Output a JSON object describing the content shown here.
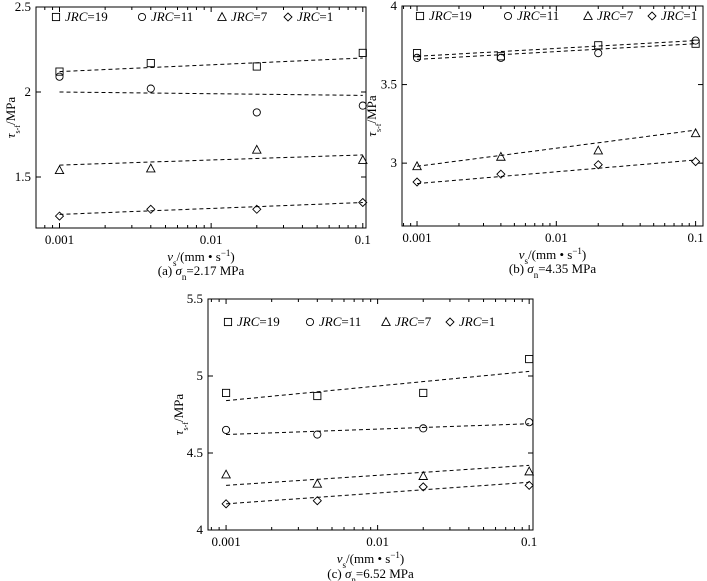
{
  "chart_data": [
    {
      "type": "scatter",
      "x_scale": "log",
      "xlim": [
        0.0007,
        0.105
      ],
      "ylim": [
        1.2,
        2.5
      ],
      "x_ticks": [
        0.001,
        0.01,
        0.1
      ],
      "x_tick_labels": [
        "0.001",
        "0.01",
        "0.1"
      ],
      "y_ticks": [
        1.5,
        2.0,
        2.5
      ],
      "y_tick_labels": [
        "1.5",
        "2",
        "2.5"
      ],
      "xlabel": "v_s/(mm • s^-1)",
      "ylabel": "τ_s-f/MPa",
      "caption": "(a) σn=2.17 MPa",
      "legend": "top",
      "series": [
        {
          "name": "JRC=19",
          "marker": "square",
          "x": [
            0.001,
            0.004,
            0.02,
            0.1
          ],
          "y": [
            2.12,
            2.17,
            2.15,
            2.23
          ],
          "fit": [
            2.12,
            2.2
          ]
        },
        {
          "name": "JRC=11",
          "marker": "circle",
          "x": [
            0.001,
            0.004,
            0.02,
            0.1
          ],
          "y": [
            2.09,
            2.02,
            1.88,
            1.92
          ],
          "fit": [
            2.0,
            1.98
          ]
        },
        {
          "name": "JRC=7",
          "marker": "triangle",
          "x": [
            0.001,
            0.004,
            0.02,
            0.1
          ],
          "y": [
            1.54,
            1.55,
            1.66,
            1.6
          ],
          "fit": [
            1.57,
            1.63
          ]
        },
        {
          "name": "JRC=1",
          "marker": "diamond",
          "x": [
            0.001,
            0.004,
            0.02,
            0.1
          ],
          "y": [
            1.27,
            1.31,
            1.31,
            1.35
          ],
          "fit": [
            1.28,
            1.35
          ]
        }
      ]
    },
    {
      "type": "scatter",
      "x_scale": "log",
      "xlim": [
        0.00078,
        0.113
      ],
      "ylim": [
        2.6,
        4.0
      ],
      "x_ticks": [
        0.001,
        0.01,
        0.1
      ],
      "x_tick_labels": [
        "0.001",
        "0.01",
        "0.1"
      ],
      "y_ticks": [
        3.0,
        3.5,
        4.0
      ],
      "y_tick_labels": [
        "3",
        "3.5",
        "4"
      ],
      "xlabel": "v_s/(mm • s^-1)",
      "ylabel": "τ_s-f/MPa",
      "caption": "(b) σn=4.35 MPa",
      "legend": "top",
      "series": [
        {
          "name": "JRC=19",
          "marker": "square",
          "x": [
            0.001,
            0.004,
            0.02,
            0.1
          ],
          "y": [
            3.7,
            3.68,
            3.75,
            3.76
          ],
          "fit": [
            3.68,
            3.78
          ]
        },
        {
          "name": "JRC=11",
          "marker": "circle",
          "x": [
            0.001,
            0.004,
            0.02,
            0.1
          ],
          "y": [
            3.67,
            3.67,
            3.7,
            3.78
          ],
          "fit": [
            3.66,
            3.76
          ]
        },
        {
          "name": "JRC=7",
          "marker": "triangle",
          "x": [
            0.001,
            0.004,
            0.02,
            0.1
          ],
          "y": [
            2.98,
            3.04,
            3.08,
            3.19
          ],
          "fit": [
            2.98,
            3.21
          ]
        },
        {
          "name": "JRC=1",
          "marker": "diamond",
          "x": [
            0.001,
            0.004,
            0.02,
            0.1
          ],
          "y": [
            2.88,
            2.93,
            2.99,
            3.01
          ],
          "fit": [
            2.87,
            3.02
          ]
        }
      ]
    },
    {
      "type": "scatter",
      "x_scale": "log",
      "xlim": [
        0.00076,
        0.106
      ],
      "ylim": [
        4.0,
        5.5
      ],
      "x_ticks": [
        0.001,
        0.01,
        0.1
      ],
      "x_tick_labels": [
        "0.001",
        "0.01",
        "0.1"
      ],
      "y_ticks": [
        4.0,
        4.5,
        5.0,
        5.5
      ],
      "y_tick_labels": [
        "4",
        "4.5",
        "5",
        "5.5"
      ],
      "xlabel": "v_s/(mm • s^-1)",
      "ylabel": "τ_s-f/MPa",
      "caption": "(c) σn=6.52 MPa",
      "legend": "top",
      "series": [
        {
          "name": "JRC=19",
          "marker": "square",
          "x": [
            0.001,
            0.004,
            0.02,
            0.1
          ],
          "y": [
            4.89,
            4.87,
            4.89,
            5.11
          ],
          "fit": [
            4.84,
            5.03
          ]
        },
        {
          "name": "JRC=11",
          "marker": "circle",
          "x": [
            0.001,
            0.004,
            0.02,
            0.1
          ],
          "y": [
            4.65,
            4.62,
            4.66,
            4.7
          ],
          "fit": [
            4.62,
            4.69
          ]
        },
        {
          "name": "JRC=7",
          "marker": "triangle",
          "x": [
            0.001,
            0.004,
            0.02,
            0.1
          ],
          "y": [
            4.36,
            4.3,
            4.35,
            4.38
          ],
          "fit": [
            4.29,
            4.42
          ]
        },
        {
          "name": "JRC=1",
          "marker": "diamond",
          "x": [
            0.001,
            0.004,
            0.02,
            0.1
          ],
          "y": [
            4.17,
            4.19,
            4.28,
            4.29
          ],
          "fit": [
            4.17,
            4.31
          ]
        }
      ]
    }
  ]
}
